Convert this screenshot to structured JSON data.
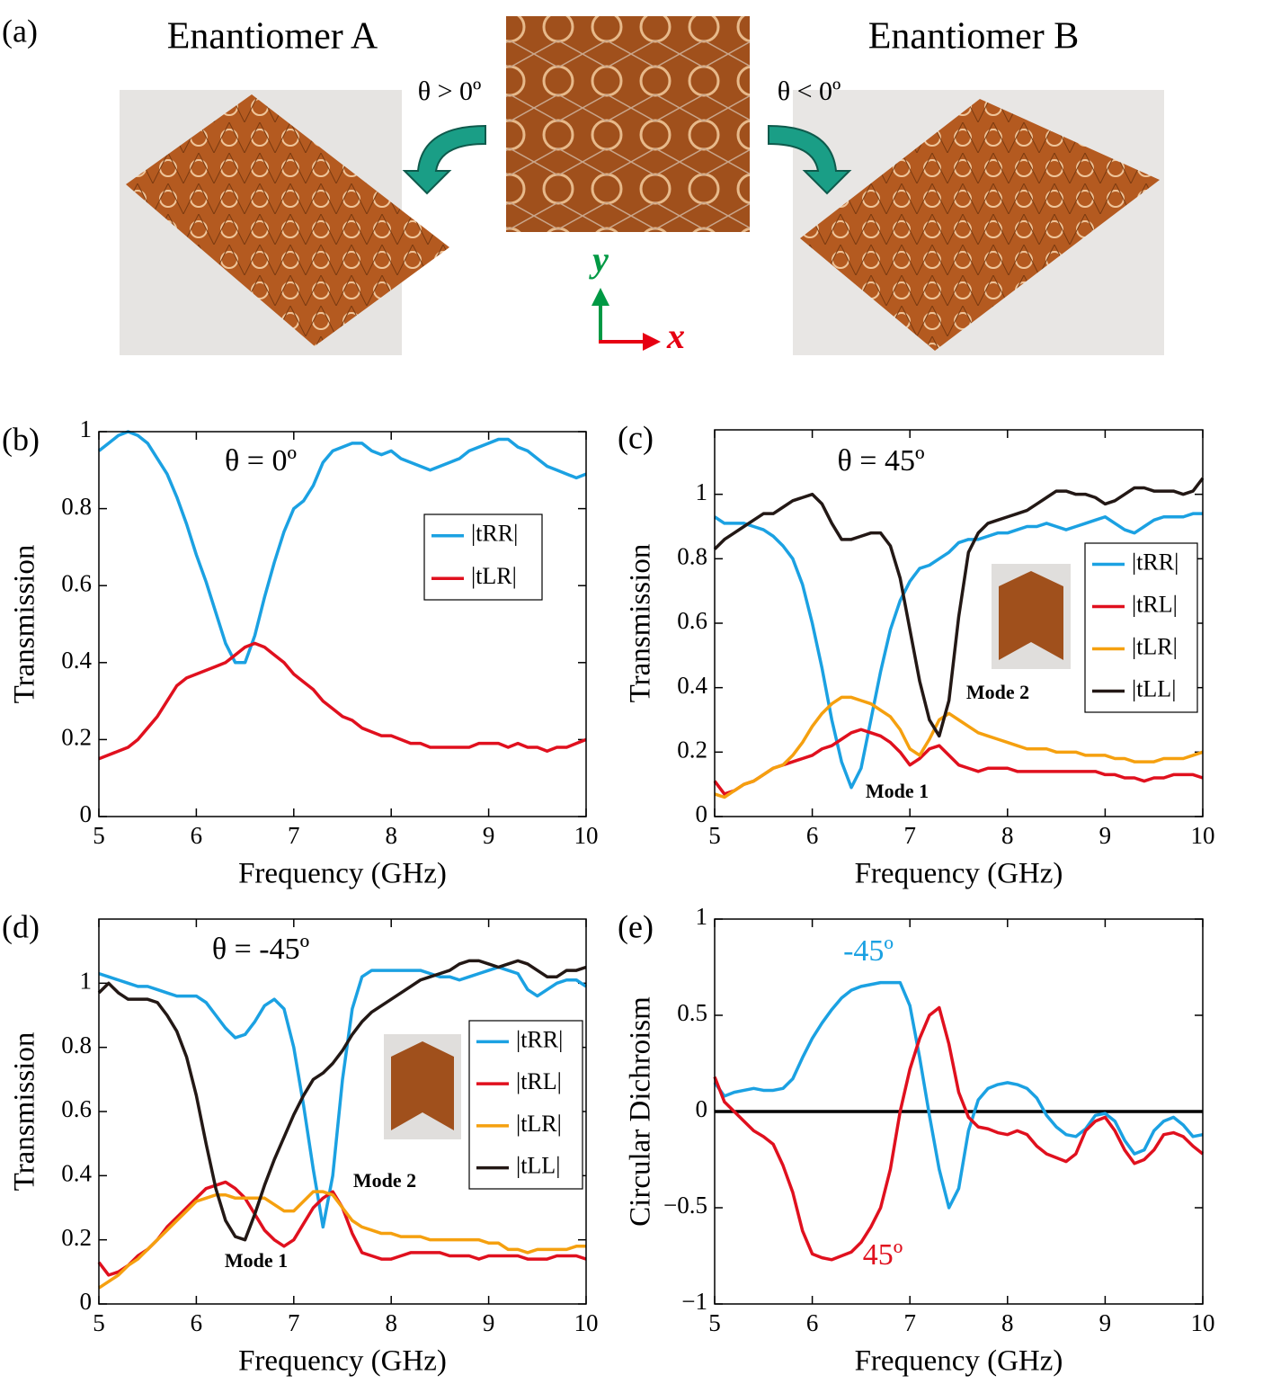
{
  "panel_a": {
    "label": "(a)",
    "left_title": "Enantiomer A",
    "right_title": "Enantiomer B",
    "left_angle": "θ > 0º",
    "right_angle": "θ < 0º",
    "y_axis": "y",
    "x_axis": "x"
  },
  "chart_data": [
    {
      "type": "line",
      "panel_label": "(b)",
      "xlabel": "Frequency (GHz)",
      "ylabel": "Transmission",
      "annotations": [
        {
          "text": "θ = 0º",
          "color": "#000000"
        }
      ],
      "xlim": [
        5,
        10
      ],
      "xticks": [
        5,
        6,
        7,
        8,
        9,
        10
      ],
      "ylim": [
        0,
        1
      ],
      "yticks": [
        0,
        0.2,
        0.4,
        0.6,
        0.8,
        1
      ],
      "x": [
        5,
        5.1,
        5.2,
        5.3,
        5.4,
        5.5,
        5.6,
        5.7,
        5.8,
        5.9,
        6,
        6.1,
        6.2,
        6.3,
        6.4,
        6.5,
        6.6,
        6.7,
        6.8,
        6.9,
        7,
        7.1,
        7.2,
        7.3,
        7.4,
        7.5,
        7.6,
        7.7,
        7.8,
        7.9,
        8,
        8.1,
        8.2,
        8.3,
        8.4,
        8.5,
        8.6,
        8.7,
        8.8,
        8.9,
        9,
        9.1,
        9.2,
        9.3,
        9.4,
        9.5,
        9.6,
        9.7,
        9.8,
        9.9,
        10
      ],
      "series": [
        {
          "name": "|tRR|",
          "color": "#1ba1e2",
          "values": [
            0.95,
            0.97,
            0.99,
            1.0,
            0.99,
            0.97,
            0.93,
            0.89,
            0.83,
            0.76,
            0.68,
            0.61,
            0.53,
            0.45,
            0.4,
            0.4,
            0.47,
            0.57,
            0.66,
            0.74,
            0.8,
            0.82,
            0.86,
            0.92,
            0.95,
            0.96,
            0.97,
            0.97,
            0.95,
            0.94,
            0.95,
            0.93,
            0.92,
            0.91,
            0.9,
            0.91,
            0.92,
            0.93,
            0.95,
            0.96,
            0.97,
            0.98,
            0.98,
            0.96,
            0.95,
            0.93,
            0.91,
            0.9,
            0.89,
            0.88,
            0.89
          ]
        },
        {
          "name": "|tLR|",
          "color": "#e0101e",
          "values": [
            0.15,
            0.16,
            0.17,
            0.18,
            0.2,
            0.23,
            0.26,
            0.3,
            0.34,
            0.36,
            0.37,
            0.38,
            0.39,
            0.4,
            0.42,
            0.44,
            0.45,
            0.44,
            0.42,
            0.4,
            0.37,
            0.35,
            0.33,
            0.3,
            0.28,
            0.26,
            0.25,
            0.23,
            0.22,
            0.21,
            0.21,
            0.2,
            0.19,
            0.19,
            0.18,
            0.18,
            0.18,
            0.18,
            0.18,
            0.19,
            0.19,
            0.19,
            0.18,
            0.19,
            0.18,
            0.18,
            0.17,
            0.18,
            0.18,
            0.19,
            0.2
          ]
        }
      ]
    },
    {
      "type": "line",
      "panel_label": "(c)",
      "xlabel": "Frequency (GHz)",
      "ylabel": "Transmission",
      "annotations": [
        {
          "text": "θ = 45º",
          "color": "#000000"
        },
        {
          "text": "Mode 1",
          "color": "#000000"
        },
        {
          "text": "Mode 2",
          "color": "#000000"
        }
      ],
      "xlim": [
        5,
        10
      ],
      "xticks": [
        5,
        6,
        7,
        8,
        9,
        10
      ],
      "ylim": [
        0,
        1.2
      ],
      "yticks": [
        0,
        0.2,
        0.4,
        0.6,
        0.8,
        1
      ],
      "x": [
        5,
        5.1,
        5.2,
        5.3,
        5.4,
        5.5,
        5.6,
        5.7,
        5.8,
        5.9,
        6,
        6.1,
        6.2,
        6.3,
        6.4,
        6.5,
        6.6,
        6.7,
        6.8,
        6.9,
        7,
        7.1,
        7.2,
        7.3,
        7.4,
        7.5,
        7.6,
        7.7,
        7.8,
        7.9,
        8,
        8.1,
        8.2,
        8.3,
        8.4,
        8.5,
        8.6,
        8.7,
        8.8,
        8.9,
        9,
        9.1,
        9.2,
        9.3,
        9.4,
        9.5,
        9.6,
        9.7,
        9.8,
        9.9,
        10
      ],
      "series": [
        {
          "name": "|tRR|",
          "color": "#1ba1e2",
          "values": [
            0.93,
            0.91,
            0.91,
            0.91,
            0.9,
            0.89,
            0.87,
            0.84,
            0.8,
            0.72,
            0.6,
            0.46,
            0.3,
            0.17,
            0.09,
            0.15,
            0.3,
            0.45,
            0.58,
            0.67,
            0.73,
            0.77,
            0.78,
            0.8,
            0.82,
            0.85,
            0.86,
            0.86,
            0.87,
            0.88,
            0.88,
            0.89,
            0.9,
            0.9,
            0.91,
            0.9,
            0.89,
            0.9,
            0.91,
            0.92,
            0.93,
            0.91,
            0.89,
            0.88,
            0.9,
            0.92,
            0.93,
            0.93,
            0.93,
            0.94,
            0.94
          ]
        },
        {
          "name": "|tRL|",
          "color": "#e0101e",
          "values": [
            0.11,
            0.07,
            0.08,
            0.1,
            0.11,
            0.13,
            0.15,
            0.16,
            0.17,
            0.18,
            0.19,
            0.21,
            0.22,
            0.24,
            0.26,
            0.27,
            0.26,
            0.25,
            0.23,
            0.2,
            0.16,
            0.18,
            0.21,
            0.22,
            0.19,
            0.16,
            0.15,
            0.14,
            0.15,
            0.15,
            0.15,
            0.14,
            0.14,
            0.14,
            0.14,
            0.14,
            0.14,
            0.14,
            0.14,
            0.14,
            0.13,
            0.13,
            0.12,
            0.12,
            0.11,
            0.12,
            0.12,
            0.13,
            0.13,
            0.13,
            0.12
          ]
        },
        {
          "name": "|tLR|",
          "color": "#f5a00f",
          "values": [
            0.07,
            0.06,
            0.08,
            0.1,
            0.11,
            0.13,
            0.15,
            0.16,
            0.19,
            0.23,
            0.28,
            0.32,
            0.35,
            0.37,
            0.37,
            0.36,
            0.35,
            0.33,
            0.31,
            0.27,
            0.21,
            0.19,
            0.24,
            0.3,
            0.32,
            0.3,
            0.28,
            0.26,
            0.25,
            0.24,
            0.23,
            0.22,
            0.21,
            0.21,
            0.21,
            0.2,
            0.2,
            0.2,
            0.19,
            0.19,
            0.19,
            0.18,
            0.18,
            0.17,
            0.17,
            0.17,
            0.18,
            0.18,
            0.18,
            0.19,
            0.2
          ]
        },
        {
          "name": "|tLL|",
          "color": "#231815",
          "values": [
            0.83,
            0.86,
            0.88,
            0.9,
            0.92,
            0.94,
            0.94,
            0.96,
            0.98,
            0.99,
            1.0,
            0.97,
            0.91,
            0.86,
            0.86,
            0.87,
            0.88,
            0.88,
            0.84,
            0.74,
            0.58,
            0.42,
            0.3,
            0.25,
            0.36,
            0.62,
            0.82,
            0.88,
            0.91,
            0.92,
            0.93,
            0.94,
            0.95,
            0.97,
            0.99,
            1.01,
            1.01,
            1.0,
            1.0,
            0.99,
            0.97,
            0.98,
            1.0,
            1.02,
            1.02,
            1.01,
            1.01,
            1.01,
            1.0,
            1.01,
            1.05
          ]
        }
      ]
    },
    {
      "type": "line",
      "panel_label": "(d)",
      "xlabel": "Frequency (GHz)",
      "ylabel": "Transmission",
      "annotations": [
        {
          "text": "θ = -45º",
          "color": "#000000"
        },
        {
          "text": "Mode 1",
          "color": "#000000"
        },
        {
          "text": "Mode 2",
          "color": "#000000"
        }
      ],
      "xlim": [
        5,
        10
      ],
      "xticks": [
        5,
        6,
        7,
        8,
        9,
        10
      ],
      "ylim": [
        0,
        1.2
      ],
      "yticks": [
        0,
        0.2,
        0.4,
        0.6,
        0.8,
        1
      ],
      "x": [
        5,
        5.1,
        5.2,
        5.3,
        5.4,
        5.5,
        5.6,
        5.7,
        5.8,
        5.9,
        6,
        6.1,
        6.2,
        6.3,
        6.4,
        6.5,
        6.6,
        6.7,
        6.8,
        6.9,
        7,
        7.1,
        7.2,
        7.3,
        7.4,
        7.5,
        7.6,
        7.7,
        7.8,
        7.9,
        8,
        8.1,
        8.2,
        8.3,
        8.4,
        8.5,
        8.6,
        8.7,
        8.8,
        8.9,
        9,
        9.1,
        9.2,
        9.3,
        9.4,
        9.5,
        9.6,
        9.7,
        9.8,
        9.9,
        10
      ],
      "series": [
        {
          "name": "|tRR|",
          "color": "#1ba1e2",
          "values": [
            1.03,
            1.02,
            1.01,
            1.0,
            0.99,
            0.99,
            0.98,
            0.97,
            0.96,
            0.96,
            0.96,
            0.94,
            0.9,
            0.86,
            0.83,
            0.84,
            0.88,
            0.93,
            0.95,
            0.92,
            0.8,
            0.62,
            0.42,
            0.24,
            0.4,
            0.7,
            0.92,
            1.02,
            1.04,
            1.04,
            1.04,
            1.04,
            1.04,
            1.04,
            1.03,
            1.02,
            1.02,
            1.01,
            1.02,
            1.03,
            1.04,
            1.05,
            1.04,
            1.03,
            0.98,
            0.96,
            0.98,
            1.0,
            1.01,
            1.01,
            0.99
          ]
        },
        {
          "name": "|tRL|",
          "color": "#e0101e",
          "values": [
            0.13,
            0.09,
            0.1,
            0.12,
            0.15,
            0.17,
            0.2,
            0.24,
            0.27,
            0.3,
            0.33,
            0.36,
            0.37,
            0.38,
            0.36,
            0.33,
            0.28,
            0.23,
            0.2,
            0.18,
            0.2,
            0.25,
            0.3,
            0.33,
            0.35,
            0.3,
            0.22,
            0.16,
            0.15,
            0.14,
            0.14,
            0.15,
            0.16,
            0.16,
            0.16,
            0.16,
            0.15,
            0.15,
            0.15,
            0.14,
            0.15,
            0.15,
            0.15,
            0.15,
            0.14,
            0.14,
            0.14,
            0.15,
            0.15,
            0.15,
            0.14
          ]
        },
        {
          "name": "|tLR|",
          "color": "#f5a00f",
          "values": [
            0.05,
            0.07,
            0.09,
            0.12,
            0.14,
            0.17,
            0.2,
            0.23,
            0.26,
            0.29,
            0.32,
            0.33,
            0.34,
            0.34,
            0.33,
            0.33,
            0.33,
            0.33,
            0.31,
            0.29,
            0.29,
            0.32,
            0.35,
            0.35,
            0.34,
            0.3,
            0.26,
            0.24,
            0.23,
            0.22,
            0.22,
            0.21,
            0.21,
            0.21,
            0.2,
            0.2,
            0.2,
            0.2,
            0.2,
            0.2,
            0.19,
            0.19,
            0.17,
            0.17,
            0.16,
            0.17,
            0.17,
            0.17,
            0.17,
            0.18,
            0.18
          ]
        },
        {
          "name": "|tLL|",
          "color": "#231815",
          "values": [
            0.97,
            1.0,
            0.97,
            0.95,
            0.95,
            0.95,
            0.94,
            0.9,
            0.85,
            0.77,
            0.65,
            0.5,
            0.36,
            0.26,
            0.21,
            0.2,
            0.28,
            0.37,
            0.45,
            0.52,
            0.59,
            0.65,
            0.7,
            0.72,
            0.75,
            0.79,
            0.84,
            0.88,
            0.91,
            0.93,
            0.95,
            0.97,
            0.99,
            1.01,
            1.02,
            1.03,
            1.04,
            1.06,
            1.07,
            1.07,
            1.06,
            1.05,
            1.06,
            1.07,
            1.06,
            1.04,
            1.02,
            1.02,
            1.04,
            1.04,
            1.05
          ]
        }
      ]
    },
    {
      "type": "line",
      "panel_label": "(e)",
      "xlabel": "Frequency (GHz)",
      "ylabel": "Circular Dichroism",
      "annotations": [
        {
          "text": "-45º",
          "color": "#1ba1e2"
        },
        {
          "text": "45º",
          "color": "#e0101e"
        }
      ],
      "xlim": [
        5,
        10
      ],
      "xticks": [
        5,
        6,
        7,
        8,
        9,
        10
      ],
      "ylim": [
        -1,
        1
      ],
      "yticks": [
        {
          "value": -1,
          "label": "−1"
        },
        {
          "value": -0.5,
          "label": "−0.5"
        },
        0,
        0.5,
        1
      ],
      "hline": 0,
      "x": [
        5,
        5.1,
        5.2,
        5.3,
        5.4,
        5.5,
        5.6,
        5.7,
        5.8,
        5.9,
        6,
        6.1,
        6.2,
        6.3,
        6.4,
        6.5,
        6.6,
        6.7,
        6.8,
        6.9,
        7,
        7.1,
        7.2,
        7.3,
        7.4,
        7.5,
        7.6,
        7.7,
        7.8,
        7.9,
        8,
        8.1,
        8.2,
        8.3,
        8.4,
        8.5,
        8.6,
        8.7,
        8.8,
        8.9,
        9,
        9.1,
        9.2,
        9.3,
        9.4,
        9.5,
        9.6,
        9.7,
        9.8,
        9.9,
        10
      ],
      "series": [
        {
          "color": "#1ba1e2",
          "values": [
            0.15,
            0.08,
            0.1,
            0.11,
            0.12,
            0.11,
            0.11,
            0.12,
            0.17,
            0.28,
            0.38,
            0.46,
            0.53,
            0.59,
            0.63,
            0.65,
            0.66,
            0.67,
            0.67,
            0.67,
            0.55,
            0.28,
            -0.02,
            -0.3,
            -0.5,
            -0.4,
            -0.1,
            0.06,
            0.12,
            0.14,
            0.15,
            0.14,
            0.12,
            0.07,
            -0.02,
            -0.08,
            -0.12,
            -0.13,
            -0.09,
            -0.02,
            -0.01,
            -0.05,
            -0.15,
            -0.22,
            -0.2,
            -0.1,
            -0.05,
            -0.03,
            -0.07,
            -0.13,
            -0.12
          ]
        },
        {
          "color": "#e0101e",
          "values": [
            0.18,
            0.05,
            0.0,
            -0.05,
            -0.1,
            -0.13,
            -0.17,
            -0.28,
            -0.42,
            -0.62,
            -0.74,
            -0.76,
            -0.77,
            -0.75,
            -0.73,
            -0.68,
            -0.6,
            -0.5,
            -0.3,
            0.0,
            0.22,
            0.38,
            0.5,
            0.54,
            0.35,
            0.1,
            -0.03,
            -0.08,
            -0.09,
            -0.11,
            -0.12,
            -0.1,
            -0.12,
            -0.18,
            -0.22,
            -0.24,
            -0.26,
            -0.22,
            -0.1,
            -0.05,
            -0.03,
            -0.1,
            -0.2,
            -0.27,
            -0.25,
            -0.2,
            -0.12,
            -0.11,
            -0.13,
            -0.18,
            -0.22
          ]
        }
      ]
    }
  ]
}
